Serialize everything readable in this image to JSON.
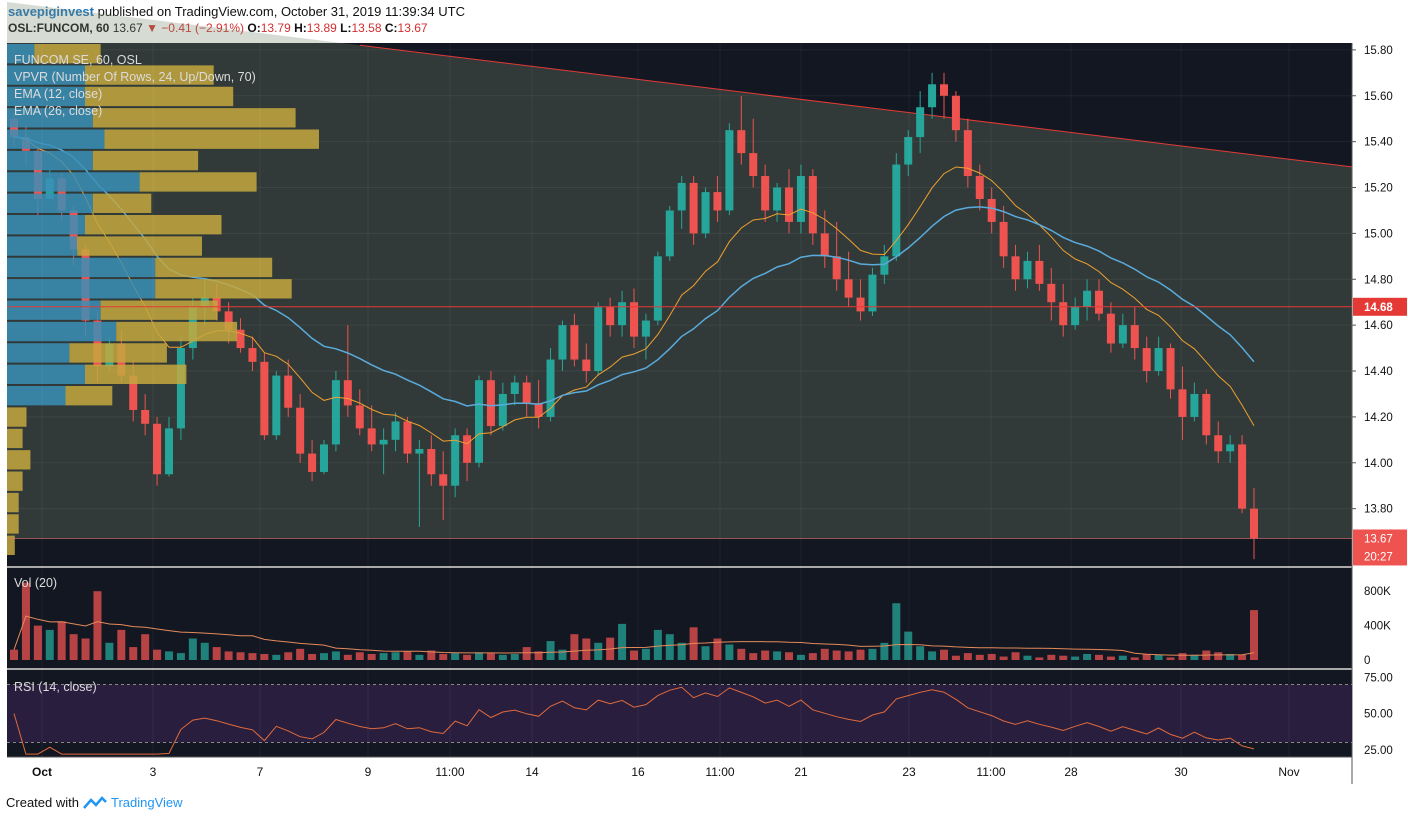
{
  "header": {
    "username": "savepiginvest",
    "published_text": "published on TradingView.com, October 31, 2019 11:39:34 UTC",
    "symbol": "OSL:FUNCOM, 60",
    "last": "13.67",
    "change": "−0.41 (−2.91%)",
    "open_label": "O:",
    "open": "13.79",
    "high_label": "H:",
    "high": "13.89",
    "low_label": "L:",
    "low": "13.58",
    "close_label": "C:",
    "close": "13.67"
  },
  "legend": {
    "title": "FUNCOM SE, 60, OSL",
    "vpvr": "VPVR (Number Of Rows, 24, Up/Down, 70)",
    "ema12": "EMA (12, close)",
    "ema26": "EMA (26, close)",
    "vol": "Vol (20)",
    "rsi": "RSI (14, close)"
  },
  "price_axis": {
    "ticks": [
      "15.80",
      "15.60",
      "15.40",
      "15.20",
      "15.00",
      "14.80",
      "14.60",
      "14.40",
      "14.20",
      "14.00",
      "13.80"
    ],
    "poc_label": "14.68",
    "last_label": "13.67",
    "countdown": "20:27"
  },
  "volume_axis": {
    "ticks": [
      "800K",
      "400K",
      "0"
    ]
  },
  "rsi_axis": {
    "ticks": [
      "75.00",
      "50.00",
      "25.00"
    ]
  },
  "date_axis": {
    "ticks": [
      "Oct",
      "3",
      "7",
      "9",
      "11:00",
      "14",
      "16",
      "11:00",
      "21",
      "23",
      "11:00",
      "28",
      "30",
      "Nov"
    ]
  },
  "footer": {
    "created_with": "Created with",
    "brand": "TradingView"
  },
  "colors": {
    "up": "#26a69a",
    "down": "#ef5350",
    "bg": "#131722",
    "ema12": "#f0a030",
    "ema26": "#5aabdc",
    "poc_line": "#e53935",
    "vpvr_up": "#3a8fb7",
    "vpvr_down": "#c4a83e",
    "rsi_band": "#2a1e3f"
  },
  "chart_data": {
    "type": "candlestick",
    "title": "FUNCOM SE, 60, OSL",
    "ylim": [
      13.55,
      15.83
    ],
    "poc_price": 14.68,
    "last_price": 13.67,
    "ohlc": [
      [
        15.5,
        15.52,
        15.38,
        15.42
      ],
      [
        15.42,
        15.47,
        15.3,
        15.36
      ],
      [
        15.36,
        15.38,
        15.08,
        15.15
      ],
      [
        15.15,
        15.28,
        15.15,
        15.24
      ],
      [
        15.24,
        15.26,
        15.05,
        15.1
      ],
      [
        15.1,
        15.12,
        14.86,
        14.93
      ],
      [
        14.93,
        14.95,
        14.55,
        14.62
      ],
      [
        14.62,
        14.66,
        14.35,
        14.42
      ],
      [
        14.42,
        14.55,
        14.4,
        14.52
      ],
      [
        14.52,
        14.58,
        14.35,
        14.38
      ],
      [
        14.38,
        14.45,
        14.18,
        14.23
      ],
      [
        14.23,
        14.3,
        14.12,
        14.17
      ],
      [
        14.17,
        14.2,
        13.9,
        13.95
      ],
      [
        13.95,
        14.2,
        13.94,
        14.15
      ],
      [
        14.15,
        14.55,
        14.1,
        14.5
      ],
      [
        14.5,
        14.72,
        14.45,
        14.68
      ],
      [
        14.68,
        14.8,
        14.6,
        14.72
      ],
      [
        14.72,
        14.78,
        14.62,
        14.66
      ],
      [
        14.66,
        14.7,
        14.52,
        14.58
      ],
      [
        14.58,
        14.63,
        14.48,
        14.5
      ],
      [
        14.5,
        14.55,
        14.4,
        14.44
      ],
      [
        14.44,
        14.48,
        14.1,
        14.12
      ],
      [
        14.12,
        14.4,
        14.1,
        14.38
      ],
      [
        14.38,
        14.45,
        14.2,
        14.24
      ],
      [
        14.24,
        14.3,
        14.0,
        14.04
      ],
      [
        14.04,
        14.1,
        13.92,
        13.96
      ],
      [
        13.96,
        14.1,
        13.95,
        14.08
      ],
      [
        14.08,
        14.4,
        14.05,
        14.36
      ],
      [
        14.36,
        14.6,
        14.2,
        14.25
      ],
      [
        14.25,
        14.32,
        14.12,
        14.15
      ],
      [
        14.15,
        14.25,
        14.05,
        14.08
      ],
      [
        14.08,
        14.15,
        13.95,
        14.1
      ],
      [
        14.1,
        14.22,
        14.05,
        14.18
      ],
      [
        14.18,
        14.2,
        14.0,
        14.04
      ],
      [
        14.04,
        14.1,
        13.72,
        14.06
      ],
      [
        14.06,
        14.12,
        13.9,
        13.95
      ],
      [
        13.95,
        14.05,
        13.75,
        13.9
      ],
      [
        13.9,
        14.15,
        13.85,
        14.12
      ],
      [
        14.12,
        14.15,
        13.92,
        14.0
      ],
      [
        14.0,
        14.38,
        13.98,
        14.36
      ],
      [
        14.36,
        14.4,
        14.12,
        14.16
      ],
      [
        14.16,
        14.35,
        14.14,
        14.3
      ],
      [
        14.3,
        14.38,
        14.25,
        14.35
      ],
      [
        14.35,
        14.38,
        14.2,
        14.26
      ],
      [
        14.26,
        14.36,
        14.15,
        14.2
      ],
      [
        14.2,
        14.5,
        14.18,
        14.45
      ],
      [
        14.45,
        14.62,
        14.4,
        14.6
      ],
      [
        14.6,
        14.65,
        14.42,
        14.45
      ],
      [
        14.45,
        14.52,
        14.35,
        14.4
      ],
      [
        14.4,
        14.7,
        14.38,
        14.68
      ],
      [
        14.68,
        14.72,
        14.55,
        14.6
      ],
      [
        14.6,
        14.75,
        14.55,
        14.7
      ],
      [
        14.7,
        14.76,
        14.5,
        14.55
      ],
      [
        14.55,
        14.65,
        14.45,
        14.62
      ],
      [
        14.62,
        14.92,
        14.6,
        14.9
      ],
      [
        14.9,
        15.12,
        14.88,
        15.1
      ],
      [
        15.1,
        15.25,
        15.02,
        15.22
      ],
      [
        15.22,
        15.25,
        14.95,
        15.0
      ],
      [
        15.0,
        15.2,
        14.98,
        15.18
      ],
      [
        15.18,
        15.25,
        15.05,
        15.1
      ],
      [
        15.1,
        15.48,
        15.08,
        15.45
      ],
      [
        15.45,
        15.6,
        15.3,
        15.35
      ],
      [
        15.35,
        15.5,
        15.2,
        15.25
      ],
      [
        15.25,
        15.3,
        15.05,
        15.1
      ],
      [
        15.1,
        15.22,
        15.05,
        15.2
      ],
      [
        15.2,
        15.28,
        15.0,
        15.05
      ],
      [
        15.05,
        15.3,
        15.0,
        15.25
      ],
      [
        15.25,
        15.28,
        14.95,
        15.0
      ],
      [
        15.0,
        15.1,
        14.85,
        14.9
      ],
      [
        14.9,
        15.05,
        14.75,
        14.8
      ],
      [
        14.8,
        14.92,
        14.68,
        14.72
      ],
      [
        14.72,
        14.8,
        14.62,
        14.66
      ],
      [
        14.66,
        14.85,
        14.64,
        14.82
      ],
      [
        14.82,
        14.95,
        14.78,
        14.9
      ],
      [
        14.9,
        15.35,
        14.88,
        15.3
      ],
      [
        15.3,
        15.45,
        15.25,
        15.42
      ],
      [
        15.42,
        15.62,
        15.35,
        15.55
      ],
      [
        15.55,
        15.7,
        15.5,
        15.65
      ],
      [
        15.65,
        15.7,
        15.5,
        15.6
      ],
      [
        15.6,
        15.62,
        15.4,
        15.45
      ],
      [
        15.45,
        15.5,
        15.2,
        15.25
      ],
      [
        15.25,
        15.3,
        15.1,
        15.15
      ],
      [
        15.15,
        15.2,
        15.0,
        15.05
      ],
      [
        15.05,
        15.12,
        14.85,
        14.9
      ],
      [
        14.9,
        14.95,
        14.75,
        14.8
      ],
      [
        14.8,
        14.92,
        14.76,
        14.88
      ],
      [
        14.88,
        14.95,
        14.75,
        14.78
      ],
      [
        14.78,
        14.85,
        14.62,
        14.7
      ],
      [
        14.7,
        14.78,
        14.55,
        14.6
      ],
      [
        14.6,
        14.72,
        14.58,
        14.68
      ],
      [
        14.68,
        14.8,
        14.62,
        14.75
      ],
      [
        14.75,
        14.8,
        14.62,
        14.65
      ],
      [
        14.65,
        14.7,
        14.48,
        14.52
      ],
      [
        14.52,
        14.65,
        14.5,
        14.6
      ],
      [
        14.6,
        14.68,
        14.45,
        14.5
      ],
      [
        14.5,
        14.55,
        14.35,
        14.4
      ],
      [
        14.4,
        14.55,
        14.38,
        14.5
      ],
      [
        14.5,
        14.52,
        14.28,
        14.32
      ],
      [
        14.32,
        14.42,
        14.1,
        14.2
      ],
      [
        14.2,
        14.35,
        14.18,
        14.3
      ],
      [
        14.3,
        14.32,
        14.08,
        14.12
      ],
      [
        14.12,
        14.18,
        14.0,
        14.05
      ],
      [
        14.05,
        14.12,
        14.0,
        14.08
      ],
      [
        14.08,
        14.12,
        13.78,
        13.8
      ],
      [
        13.8,
        13.89,
        13.58,
        13.67
      ]
    ],
    "volume": [
      120,
      900,
      400,
      350,
      450,
      300,
      250,
      800,
      200,
      350,
      150,
      300,
      120,
      100,
      80,
      250,
      200,
      150,
      100,
      90,
      80,
      70,
      60,
      90,
      130,
      70,
      80,
      100,
      60,
      90,
      70,
      80,
      90,
      100,
      60,
      110,
      70,
      80,
      60,
      90,
      80,
      60,
      70,
      150,
      100,
      220,
      120,
      300,
      250,
      200,
      260,
      420,
      110,
      130,
      350,
      300,
      200,
      380,
      160,
      250,
      180,
      130,
      80,
      110,
      100,
      90,
      60,
      80,
      130,
      110,
      100,
      120,
      130,
      200,
      660,
      330,
      160,
      100,
      120,
      50,
      80,
      60,
      70,
      40,
      90,
      50,
      30,
      60,
      50,
      40,
      70,
      60,
      40,
      50,
      30,
      70,
      60,
      30,
      80,
      60,
      110,
      90,
      70,
      60,
      580
    ],
    "rsi_range": [
      20,
      80
    ],
    "rsi_levels": [
      70,
      30
    ],
    "vpvr_rows": [
      {
        "up": 0.0,
        "down": 0.02
      },
      {
        "up": 0.0,
        "down": 0.03
      },
      {
        "up": 0.0,
        "down": 0.03
      },
      {
        "up": 0.0,
        "down": 0.04
      },
      {
        "up": 0.0,
        "down": 0.06
      },
      {
        "up": 0.0,
        "down": 0.04
      },
      {
        "up": 0.0,
        "down": 0.05
      },
      {
        "up": 0.15,
        "down": 0.12
      },
      {
        "up": 0.2,
        "down": 0.26
      },
      {
        "up": 0.16,
        "down": 0.25
      },
      {
        "up": 0.28,
        "down": 0.31
      },
      {
        "up": 0.24,
        "down": 0.3
      },
      {
        "up": 0.38,
        "down": 0.35
      },
      {
        "up": 0.38,
        "down": 0.3
      },
      {
        "up": 0.18,
        "down": 0.32
      },
      {
        "up": 0.2,
        "down": 0.35
      },
      {
        "up": 0.22,
        "down": 0.15
      },
      {
        "up": 0.34,
        "down": 0.3
      },
      {
        "up": 0.22,
        "down": 0.27
      },
      {
        "up": 0.25,
        "down": 0.55
      },
      {
        "up": 0.22,
        "down": 0.52
      },
      {
        "up": 0.2,
        "down": 0.38
      },
      {
        "up": 0.2,
        "down": 0.33
      },
      {
        "up": 0.07,
        "down": 0.17
      }
    ]
  }
}
